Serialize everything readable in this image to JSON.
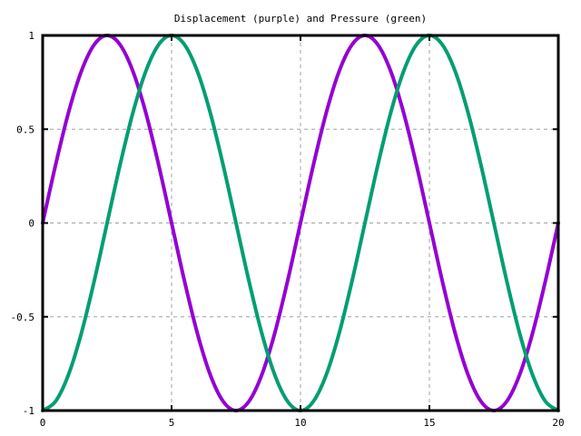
{
  "chart_data": {
    "type": "line",
    "title": "Displacement (purple) and Pressure (green)",
    "xlabel": "",
    "ylabel": "",
    "xlim": [
      0,
      20
    ],
    "ylim": [
      -1,
      1
    ],
    "x_ticks": [
      0,
      5,
      10,
      15,
      20
    ],
    "x_tick_labels": [
      "0",
      "5",
      "10",
      "15",
      "20"
    ],
    "y_ticks": [
      -1,
      -0.5,
      0,
      0.5,
      1
    ],
    "y_tick_labels": [
      "-1",
      "-0.5",
      "0",
      "0.5",
      "1"
    ],
    "grid": true,
    "legend": "none",
    "x": [
      0,
      0.5,
      1,
      1.5,
      2,
      2.5,
      3,
      3.5,
      4,
      4.5,
      5,
      5.5,
      6,
      6.5,
      7,
      7.5,
      8,
      8.5,
      9,
      9.5,
      10,
      10.5,
      11,
      11.5,
      12,
      12.5,
      13,
      13.5,
      14,
      14.5,
      15,
      15.5,
      16,
      16.5,
      17,
      17.5,
      18,
      18.5,
      19,
      19.5,
      20
    ],
    "series": [
      {
        "color": "#9400d3",
        "values": [
          0,
          0.309,
          0.588,
          0.809,
          0.951,
          1,
          0.951,
          0.809,
          0.588,
          0.309,
          0,
          -0.309,
          -0.588,
          -0.809,
          -0.951,
          -1,
          -0.951,
          -0.809,
          -0.588,
          -0.309,
          0,
          0.309,
          0.588,
          0.809,
          0.951,
          1,
          0.951,
          0.809,
          0.588,
          0.309,
          0,
          -0.309,
          -0.588,
          -0.809,
          -0.951,
          -1,
          -0.951,
          -0.809,
          -0.588,
          -0.309,
          0
        ]
      },
      {
        "color": "#009e73",
        "values": [
          -1,
          -0.951,
          -0.809,
          -0.588,
          -0.309,
          0,
          0.309,
          0.588,
          0.809,
          0.951,
          1,
          0.951,
          0.809,
          0.588,
          0.309,
          0,
          -0.309,
          -0.588,
          -0.809,
          -0.951,
          -1,
          -0.951,
          -0.809,
          -0.588,
          -0.309,
          0,
          0.309,
          0.588,
          0.809,
          0.951,
          1,
          0.951,
          0.809,
          0.588,
          0.309,
          0,
          -0.309,
          -0.588,
          -0.809,
          -0.951,
          -1
        ]
      }
    ]
  }
}
